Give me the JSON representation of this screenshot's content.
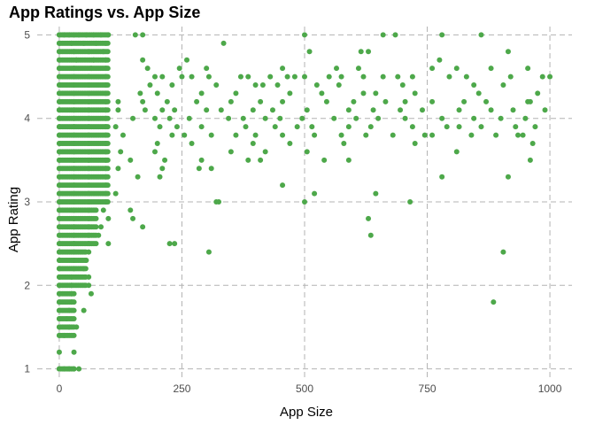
{
  "chart_data": {
    "type": "scatter",
    "title": "App Ratings vs. App Size",
    "xlabel": "App Size",
    "ylabel": "App Rating",
    "xlim": [
      -45,
      1045
    ],
    "ylim": [
      0.9,
      5.1
    ],
    "x_ticks": [
      0,
      250,
      500,
      750,
      1000
    ],
    "y_ticks": [
      1,
      2,
      3,
      4,
      5
    ],
    "grid": true,
    "grid_style": "dashed",
    "point_color": "#4DA84A",
    "notes_dense_band": "Points with App Size between 0 and 100 occur at nearly every rating from 1.0 to 5.0 in 0.1 steps.",
    "points": [
      [
        0,
        5.0
      ],
      [
        10,
        5.0
      ],
      [
        20,
        5.0
      ],
      [
        30,
        5.0
      ],
      [
        40,
        5.0
      ],
      [
        55,
        5.0
      ],
      [
        70,
        5.0
      ],
      [
        85,
        5.0
      ],
      [
        100,
        5.0
      ],
      [
        155,
        5.0
      ],
      [
        170,
        5.0
      ],
      [
        500,
        5.0
      ],
      [
        660,
        5.0
      ],
      [
        685,
        5.0
      ],
      [
        780,
        5.0
      ],
      [
        860,
        5.0
      ],
      [
        0,
        4.9
      ],
      [
        25,
        4.9
      ],
      [
        50,
        4.9
      ],
      [
        75,
        4.9
      ],
      [
        95,
        4.9
      ],
      [
        335,
        4.9
      ],
      [
        0,
        4.8
      ],
      [
        30,
        4.8
      ],
      [
        60,
        4.8
      ],
      [
        90,
        4.8
      ],
      [
        510,
        4.8
      ],
      [
        615,
        4.8
      ],
      [
        630,
        4.8
      ],
      [
        915,
        4.8
      ],
      [
        0,
        4.7
      ],
      [
        35,
        4.7
      ],
      [
        70,
        4.7
      ],
      [
        95,
        4.7
      ],
      [
        170,
        4.7
      ],
      [
        260,
        4.7
      ],
      [
        775,
        4.7
      ],
      [
        0,
        4.6
      ],
      [
        30,
        4.6
      ],
      [
        65,
        4.6
      ],
      [
        95,
        4.6
      ],
      [
        180,
        4.6
      ],
      [
        245,
        4.6
      ],
      [
        300,
        4.6
      ],
      [
        455,
        4.6
      ],
      [
        565,
        4.6
      ],
      [
        610,
        4.6
      ],
      [
        760,
        4.6
      ],
      [
        810,
        4.6
      ],
      [
        880,
        4.6
      ],
      [
        955,
        4.6
      ],
      [
        0,
        4.5
      ],
      [
        30,
        4.5
      ],
      [
        60,
        4.5
      ],
      [
        95,
        4.5
      ],
      [
        195,
        4.5
      ],
      [
        210,
        4.5
      ],
      [
        250,
        4.5
      ],
      [
        270,
        4.5
      ],
      [
        305,
        4.5
      ],
      [
        370,
        4.5
      ],
      [
        385,
        4.5
      ],
      [
        430,
        4.5
      ],
      [
        465,
        4.5
      ],
      [
        480,
        4.5
      ],
      [
        500,
        4.5
      ],
      [
        550,
        4.5
      ],
      [
        575,
        4.5
      ],
      [
        620,
        4.5
      ],
      [
        660,
        4.5
      ],
      [
        690,
        4.5
      ],
      [
        720,
        4.5
      ],
      [
        795,
        4.5
      ],
      [
        830,
        4.5
      ],
      [
        920,
        4.5
      ],
      [
        985,
        4.5
      ],
      [
        1000,
        4.5
      ],
      [
        0,
        4.4
      ],
      [
        30,
        4.4
      ],
      [
        60,
        4.4
      ],
      [
        95,
        4.4
      ],
      [
        185,
        4.4
      ],
      [
        230,
        4.4
      ],
      [
        320,
        4.4
      ],
      [
        400,
        4.4
      ],
      [
        415,
        4.4
      ],
      [
        445,
        4.4
      ],
      [
        525,
        4.4
      ],
      [
        570,
        4.4
      ],
      [
        700,
        4.4
      ],
      [
        845,
        4.4
      ],
      [
        905,
        4.4
      ],
      [
        0,
        4.3
      ],
      [
        30,
        4.3
      ],
      [
        60,
        4.3
      ],
      [
        95,
        4.3
      ],
      [
        165,
        4.3
      ],
      [
        200,
        4.3
      ],
      [
        290,
        4.3
      ],
      [
        360,
        4.3
      ],
      [
        470,
        4.3
      ],
      [
        535,
        4.3
      ],
      [
        620,
        4.3
      ],
      [
        645,
        4.3
      ],
      [
        725,
        4.3
      ],
      [
        855,
        4.3
      ],
      [
        975,
        4.3
      ],
      [
        0,
        4.2
      ],
      [
        30,
        4.2
      ],
      [
        60,
        4.2
      ],
      [
        95,
        4.2
      ],
      [
        120,
        4.2
      ],
      [
        170,
        4.2
      ],
      [
        220,
        4.2
      ],
      [
        280,
        4.2
      ],
      [
        350,
        4.2
      ],
      [
        410,
        4.2
      ],
      [
        455,
        4.2
      ],
      [
        545,
        4.2
      ],
      [
        600,
        4.2
      ],
      [
        665,
        4.2
      ],
      [
        705,
        4.2
      ],
      [
        760,
        4.2
      ],
      [
        825,
        4.2
      ],
      [
        870,
        4.2
      ],
      [
        955,
        4.2
      ],
      [
        960,
        4.2
      ],
      [
        0,
        4.1
      ],
      [
        30,
        4.1
      ],
      [
        60,
        4.1
      ],
      [
        95,
        4.1
      ],
      [
        120,
        4.1
      ],
      [
        175,
        4.1
      ],
      [
        210,
        4.1
      ],
      [
        235,
        4.1
      ],
      [
        300,
        4.1
      ],
      [
        330,
        4.1
      ],
      [
        395,
        4.1
      ],
      [
        435,
        4.1
      ],
      [
        505,
        4.1
      ],
      [
        590,
        4.1
      ],
      [
        640,
        4.1
      ],
      [
        695,
        4.1
      ],
      [
        740,
        4.1
      ],
      [
        815,
        4.1
      ],
      [
        880,
        4.1
      ],
      [
        925,
        4.1
      ],
      [
        990,
        4.1
      ],
      [
        0,
        4.0
      ],
      [
        30,
        4.0
      ],
      [
        60,
        4.0
      ],
      [
        95,
        4.0
      ],
      [
        150,
        4.0
      ],
      [
        195,
        4.0
      ],
      [
        225,
        4.0
      ],
      [
        265,
        4.0
      ],
      [
        345,
        4.0
      ],
      [
        375,
        4.0
      ],
      [
        420,
        4.0
      ],
      [
        450,
        4.0
      ],
      [
        495,
        4.0
      ],
      [
        560,
        4.0
      ],
      [
        605,
        4.0
      ],
      [
        650,
        4.0
      ],
      [
        705,
        4.0
      ],
      [
        780,
        4.0
      ],
      [
        845,
        4.0
      ],
      [
        900,
        4.0
      ],
      [
        950,
        4.0
      ],
      [
        0,
        3.9
      ],
      [
        30,
        3.9
      ],
      [
        60,
        3.9
      ],
      [
        95,
        3.9
      ],
      [
        115,
        3.9
      ],
      [
        205,
        3.9
      ],
      [
        240,
        3.9
      ],
      [
        290,
        3.9
      ],
      [
        380,
        3.9
      ],
      [
        440,
        3.9
      ],
      [
        485,
        3.9
      ],
      [
        515,
        3.9
      ],
      [
        590,
        3.9
      ],
      [
        635,
        3.9
      ],
      [
        720,
        3.9
      ],
      [
        790,
        3.9
      ],
      [
        815,
        3.9
      ],
      [
        860,
        3.9
      ],
      [
        930,
        3.9
      ],
      [
        970,
        3.9
      ],
      [
        0,
        3.8
      ],
      [
        30,
        3.8
      ],
      [
        60,
        3.8
      ],
      [
        95,
        3.8
      ],
      [
        130,
        3.8
      ],
      [
        230,
        3.8
      ],
      [
        255,
        3.8
      ],
      [
        310,
        3.8
      ],
      [
        360,
        3.8
      ],
      [
        400,
        3.8
      ],
      [
        455,
        3.8
      ],
      [
        520,
        3.8
      ],
      [
        575,
        3.8
      ],
      [
        625,
        3.8
      ],
      [
        680,
        3.8
      ],
      [
        745,
        3.8
      ],
      [
        760,
        3.8
      ],
      [
        840,
        3.8
      ],
      [
        890,
        3.8
      ],
      [
        935,
        3.8
      ],
      [
        945,
        3.8
      ],
      [
        0,
        3.7
      ],
      [
        30,
        3.7
      ],
      [
        60,
        3.7
      ],
      [
        95,
        3.7
      ],
      [
        200,
        3.7
      ],
      [
        270,
        3.7
      ],
      [
        395,
        3.7
      ],
      [
        470,
        3.7
      ],
      [
        580,
        3.7
      ],
      [
        725,
        3.7
      ],
      [
        965,
        3.7
      ],
      [
        0,
        3.6
      ],
      [
        30,
        3.6
      ],
      [
        60,
        3.6
      ],
      [
        95,
        3.6
      ],
      [
        125,
        3.6
      ],
      [
        195,
        3.6
      ],
      [
        350,
        3.6
      ],
      [
        420,
        3.6
      ],
      [
        505,
        3.6
      ],
      [
        810,
        3.6
      ],
      [
        0,
        3.5
      ],
      [
        30,
        3.5
      ],
      [
        60,
        3.5
      ],
      [
        95,
        3.5
      ],
      [
        145,
        3.5
      ],
      [
        215,
        3.5
      ],
      [
        290,
        3.5
      ],
      [
        385,
        3.5
      ],
      [
        410,
        3.5
      ],
      [
        540,
        3.5
      ],
      [
        590,
        3.5
      ],
      [
        960,
        3.5
      ],
      [
        0,
        3.4
      ],
      [
        30,
        3.4
      ],
      [
        60,
        3.4
      ],
      [
        95,
        3.4
      ],
      [
        120,
        3.4
      ],
      [
        210,
        3.4
      ],
      [
        285,
        3.4
      ],
      [
        310,
        3.4
      ],
      [
        0,
        3.3
      ],
      [
        30,
        3.3
      ],
      [
        60,
        3.3
      ],
      [
        95,
        3.3
      ],
      [
        160,
        3.3
      ],
      [
        205,
        3.3
      ],
      [
        780,
        3.3
      ],
      [
        915,
        3.3
      ],
      [
        0,
        3.2
      ],
      [
        30,
        3.2
      ],
      [
        60,
        3.2
      ],
      [
        95,
        3.2
      ],
      [
        455,
        3.2
      ],
      [
        0,
        3.1
      ],
      [
        30,
        3.1
      ],
      [
        60,
        3.1
      ],
      [
        95,
        3.1
      ],
      [
        115,
        3.1
      ],
      [
        520,
        3.1
      ],
      [
        645,
        3.1
      ],
      [
        0,
        3.0
      ],
      [
        30,
        3.0
      ],
      [
        60,
        3.0
      ],
      [
        95,
        3.0
      ],
      [
        320,
        3.0
      ],
      [
        325,
        3.0
      ],
      [
        500,
        3.0
      ],
      [
        715,
        3.0
      ],
      [
        0,
        2.9
      ],
      [
        30,
        2.9
      ],
      [
        60,
        2.9
      ],
      [
        90,
        2.9
      ],
      [
        145,
        2.9
      ],
      [
        0,
        2.8
      ],
      [
        30,
        2.8
      ],
      [
        60,
        2.8
      ],
      [
        100,
        2.8
      ],
      [
        150,
        2.8
      ],
      [
        630,
        2.8
      ],
      [
        0,
        2.7
      ],
      [
        30,
        2.7
      ],
      [
        60,
        2.7
      ],
      [
        85,
        2.7
      ],
      [
        170,
        2.7
      ],
      [
        0,
        2.6
      ],
      [
        30,
        2.6
      ],
      [
        60,
        2.6
      ],
      [
        80,
        2.6
      ],
      [
        635,
        2.6
      ],
      [
        0,
        2.5
      ],
      [
        30,
        2.5
      ],
      [
        60,
        2.5
      ],
      [
        100,
        2.5
      ],
      [
        225,
        2.5
      ],
      [
        235,
        2.5
      ],
      [
        0,
        2.4
      ],
      [
        30,
        2.4
      ],
      [
        60,
        2.4
      ],
      [
        305,
        2.4
      ],
      [
        905,
        2.4
      ],
      [
        0,
        2.3
      ],
      [
        30,
        2.3
      ],
      [
        55,
        2.3
      ],
      [
        0,
        2.2
      ],
      [
        30,
        2.2
      ],
      [
        50,
        2.2
      ],
      [
        0,
        2.1
      ],
      [
        25,
        2.1
      ],
      [
        60,
        2.1
      ],
      [
        0,
        2.0
      ],
      [
        25,
        2.0
      ],
      [
        60,
        2.0
      ],
      [
        0,
        1.9
      ],
      [
        25,
        1.9
      ],
      [
        65,
        1.9
      ],
      [
        0,
        1.8
      ],
      [
        25,
        1.8
      ],
      [
        885,
        1.8
      ],
      [
        0,
        1.7
      ],
      [
        20,
        1.7
      ],
      [
        50,
        1.7
      ],
      [
        0,
        1.6
      ],
      [
        15,
        1.6
      ],
      [
        0,
        1.5
      ],
      [
        20,
        1.5
      ],
      [
        35,
        1.5
      ],
      [
        0,
        1.4
      ],
      [
        10,
        1.4
      ],
      [
        0,
        1.2
      ],
      [
        30,
        1.2
      ],
      [
        0,
        1.0
      ],
      [
        10,
        1.0
      ],
      [
        20,
        1.0
      ],
      [
        30,
        1.0
      ],
      [
        40,
        1.0
      ]
    ]
  }
}
